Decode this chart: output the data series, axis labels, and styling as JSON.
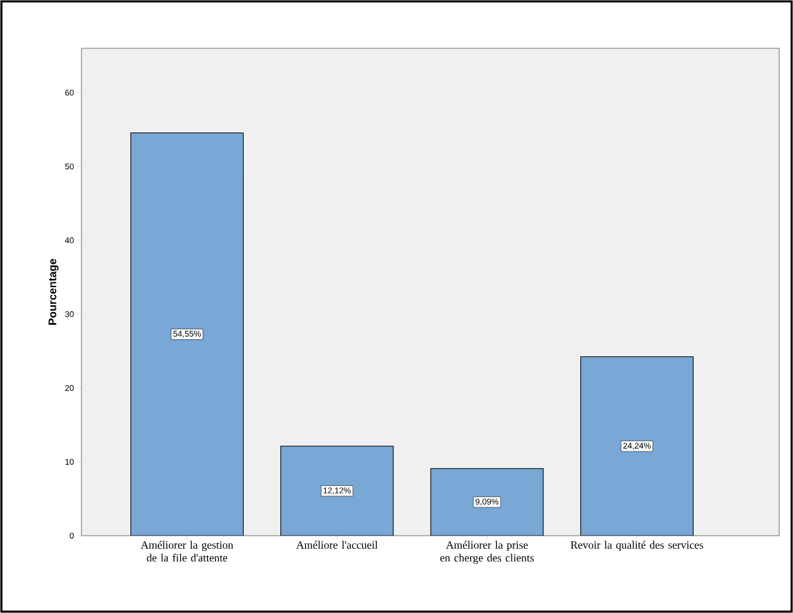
{
  "chart_data": {
    "type": "bar",
    "ylabel": "Pourcentage",
    "categories": [
      "Améliorer la gestion de la file d'attente",
      "Améliore l'accueil",
      "Améliorer la prise en cherge des clients",
      "Revoir la qualité des services"
    ],
    "values": [
      54.55,
      12.12,
      9.09,
      24.24
    ],
    "value_labels": [
      "54,55%",
      "12,12%",
      "9,09%",
      "24,24%"
    ],
    "color": "#79a7d6",
    "ylim": [
      0,
      66
    ],
    "yticks": [
      0,
      10,
      20,
      30,
      40,
      50,
      60
    ]
  }
}
